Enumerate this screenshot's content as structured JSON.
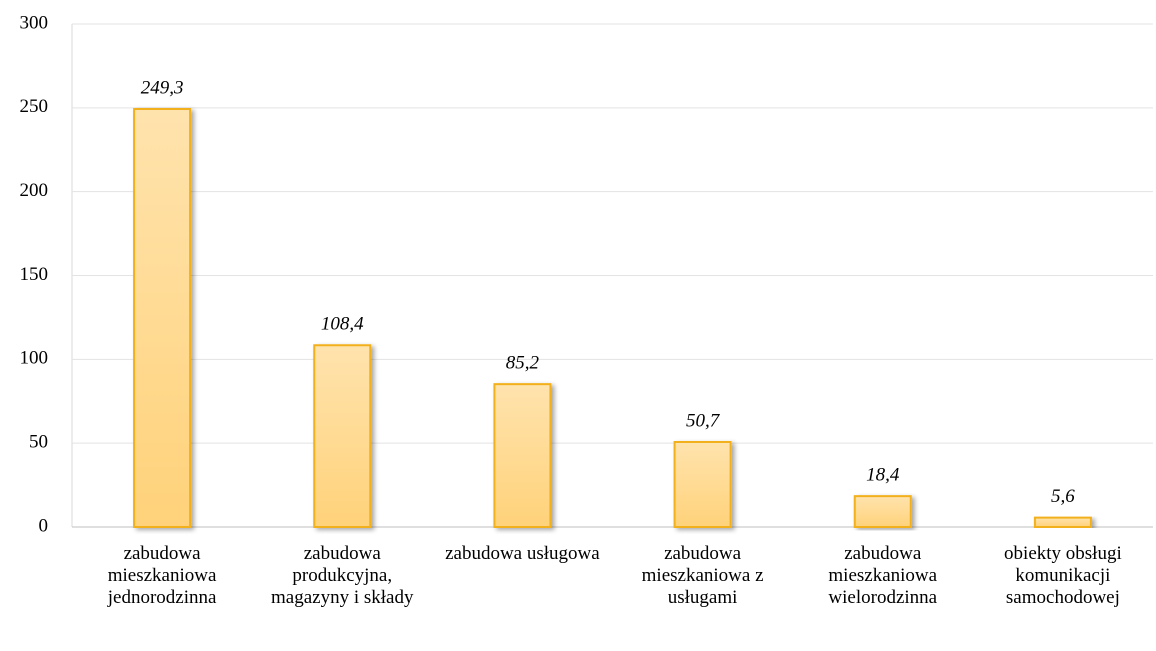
{
  "chart_data": {
    "type": "bar",
    "categories": [
      "zabudowa mieszkaniowa jednorodzinna",
      "zabudowa produkcyjna, magazyny i składy",
      "zabudowa usługowa",
      "zabudowa mieszkaniowa z usługami",
      "zabudowa mieszkaniowa wielorodzinna",
      "obiekty obsługi komunikacji samochodowej"
    ],
    "values": [
      249.3,
      108.4,
      85.2,
      50.7,
      18.4,
      5.6
    ],
    "value_labels": [
      "249,3",
      "108,4",
      "85,2",
      "50,7",
      "18,4",
      "5,6"
    ],
    "color": "#ffd88a",
    "ylim": [
      0,
      300
    ],
    "yticks": [
      0,
      50,
      100,
      150,
      200,
      250,
      300
    ],
    "grid": true
  }
}
